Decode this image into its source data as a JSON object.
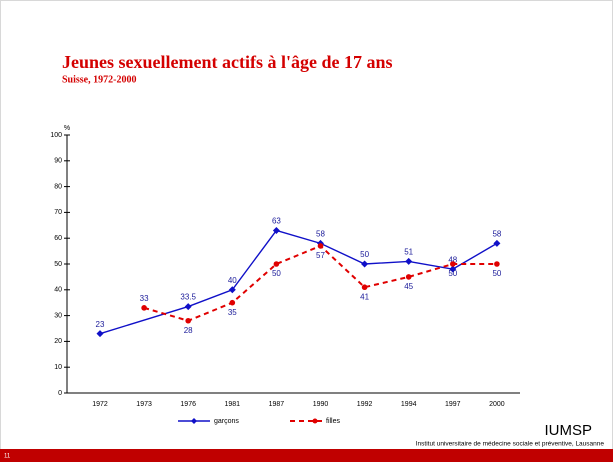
{
  "chart_data": {
    "type": "line",
    "title": "Jeunes sexuellement actifs à l'âge de 17 ans",
    "subtitle": "Suisse, 1972-2000",
    "y_label": "%",
    "categories": [
      "1972",
      "1973",
      "1976",
      "1981",
      "1987",
      "1990",
      "1992",
      "1994",
      "1997",
      "2000"
    ],
    "series": [
      {
        "name": "garçons",
        "color": "#1010c8",
        "marker": "diamond",
        "dash": false,
        "x": [
          "1972",
          "1976",
          "1981",
          "1987",
          "1990",
          "1992",
          "1994",
          "1997",
          "2000"
        ],
        "values": [
          23,
          33.5,
          40,
          63,
          58,
          50,
          51,
          48,
          58
        ]
      },
      {
        "name": "filles",
        "color": "#e00000",
        "marker": "circle",
        "dash": true,
        "x": [
          "1973",
          "1976",
          "1981",
          "1987",
          "1990",
          "1992",
          "1994",
          "1997",
          "2000"
        ],
        "values": [
          33,
          28,
          35,
          50,
          57,
          41,
          45,
          50,
          50
        ]
      }
    ],
    "ylim": [
      0,
      100
    ],
    "yticks": [
      0,
      10,
      20,
      30,
      40,
      50,
      60,
      70,
      80,
      90,
      100
    ],
    "legend": "bottom"
  },
  "footer": {
    "logo": "IUMSP",
    "institution": "Institut universitaire de médecine sociale et préventive, Lausanne",
    "page_number": "11"
  }
}
